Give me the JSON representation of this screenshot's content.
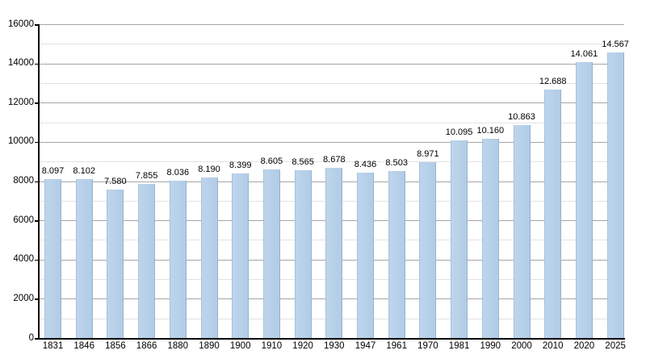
{
  "chart_data": {
    "type": "bar",
    "title": "",
    "xlabel": "",
    "ylabel": "",
    "categories": [
      "1831",
      "1846",
      "1856",
      "1866",
      "1880",
      "1890",
      "1900",
      "1910",
      "1920",
      "1930",
      "1947",
      "1961",
      "1970",
      "1981",
      "1990",
      "2000",
      "2010",
      "2020",
      "2025"
    ],
    "values": [
      8097,
      8102,
      7580,
      7855,
      8036,
      8190,
      8399,
      8605,
      8565,
      8678,
      8436,
      8503,
      8971,
      10095,
      10160,
      10863,
      12688,
      14061,
      14567
    ],
    "value_labels": [
      "8.097",
      "8.102",
      "7.580",
      "7.855",
      "8.036",
      "8.190",
      "8.399",
      "8.605",
      "8.565",
      "8.678",
      "8.436",
      "8.503",
      "8.971",
      "10.095",
      "10.160",
      "10.863",
      "12.688",
      "14.061",
      "14.567"
    ],
    "ylim": [
      0,
      16000
    ],
    "y_major_ticks": [
      0,
      2000,
      4000,
      6000,
      8000,
      10000,
      12000,
      14000,
      16000
    ],
    "y_minor_step": 1000,
    "grid": "on",
    "legend": "none",
    "colors": {
      "bar_fill": "#b1cce6",
      "bar_fill_light": "#bdd5ec",
      "grid_major": "#a6a6a6",
      "grid_minor": "#e3e3e3",
      "axis": "#000000",
      "text": "#000000",
      "background": "#ffffff"
    }
  }
}
